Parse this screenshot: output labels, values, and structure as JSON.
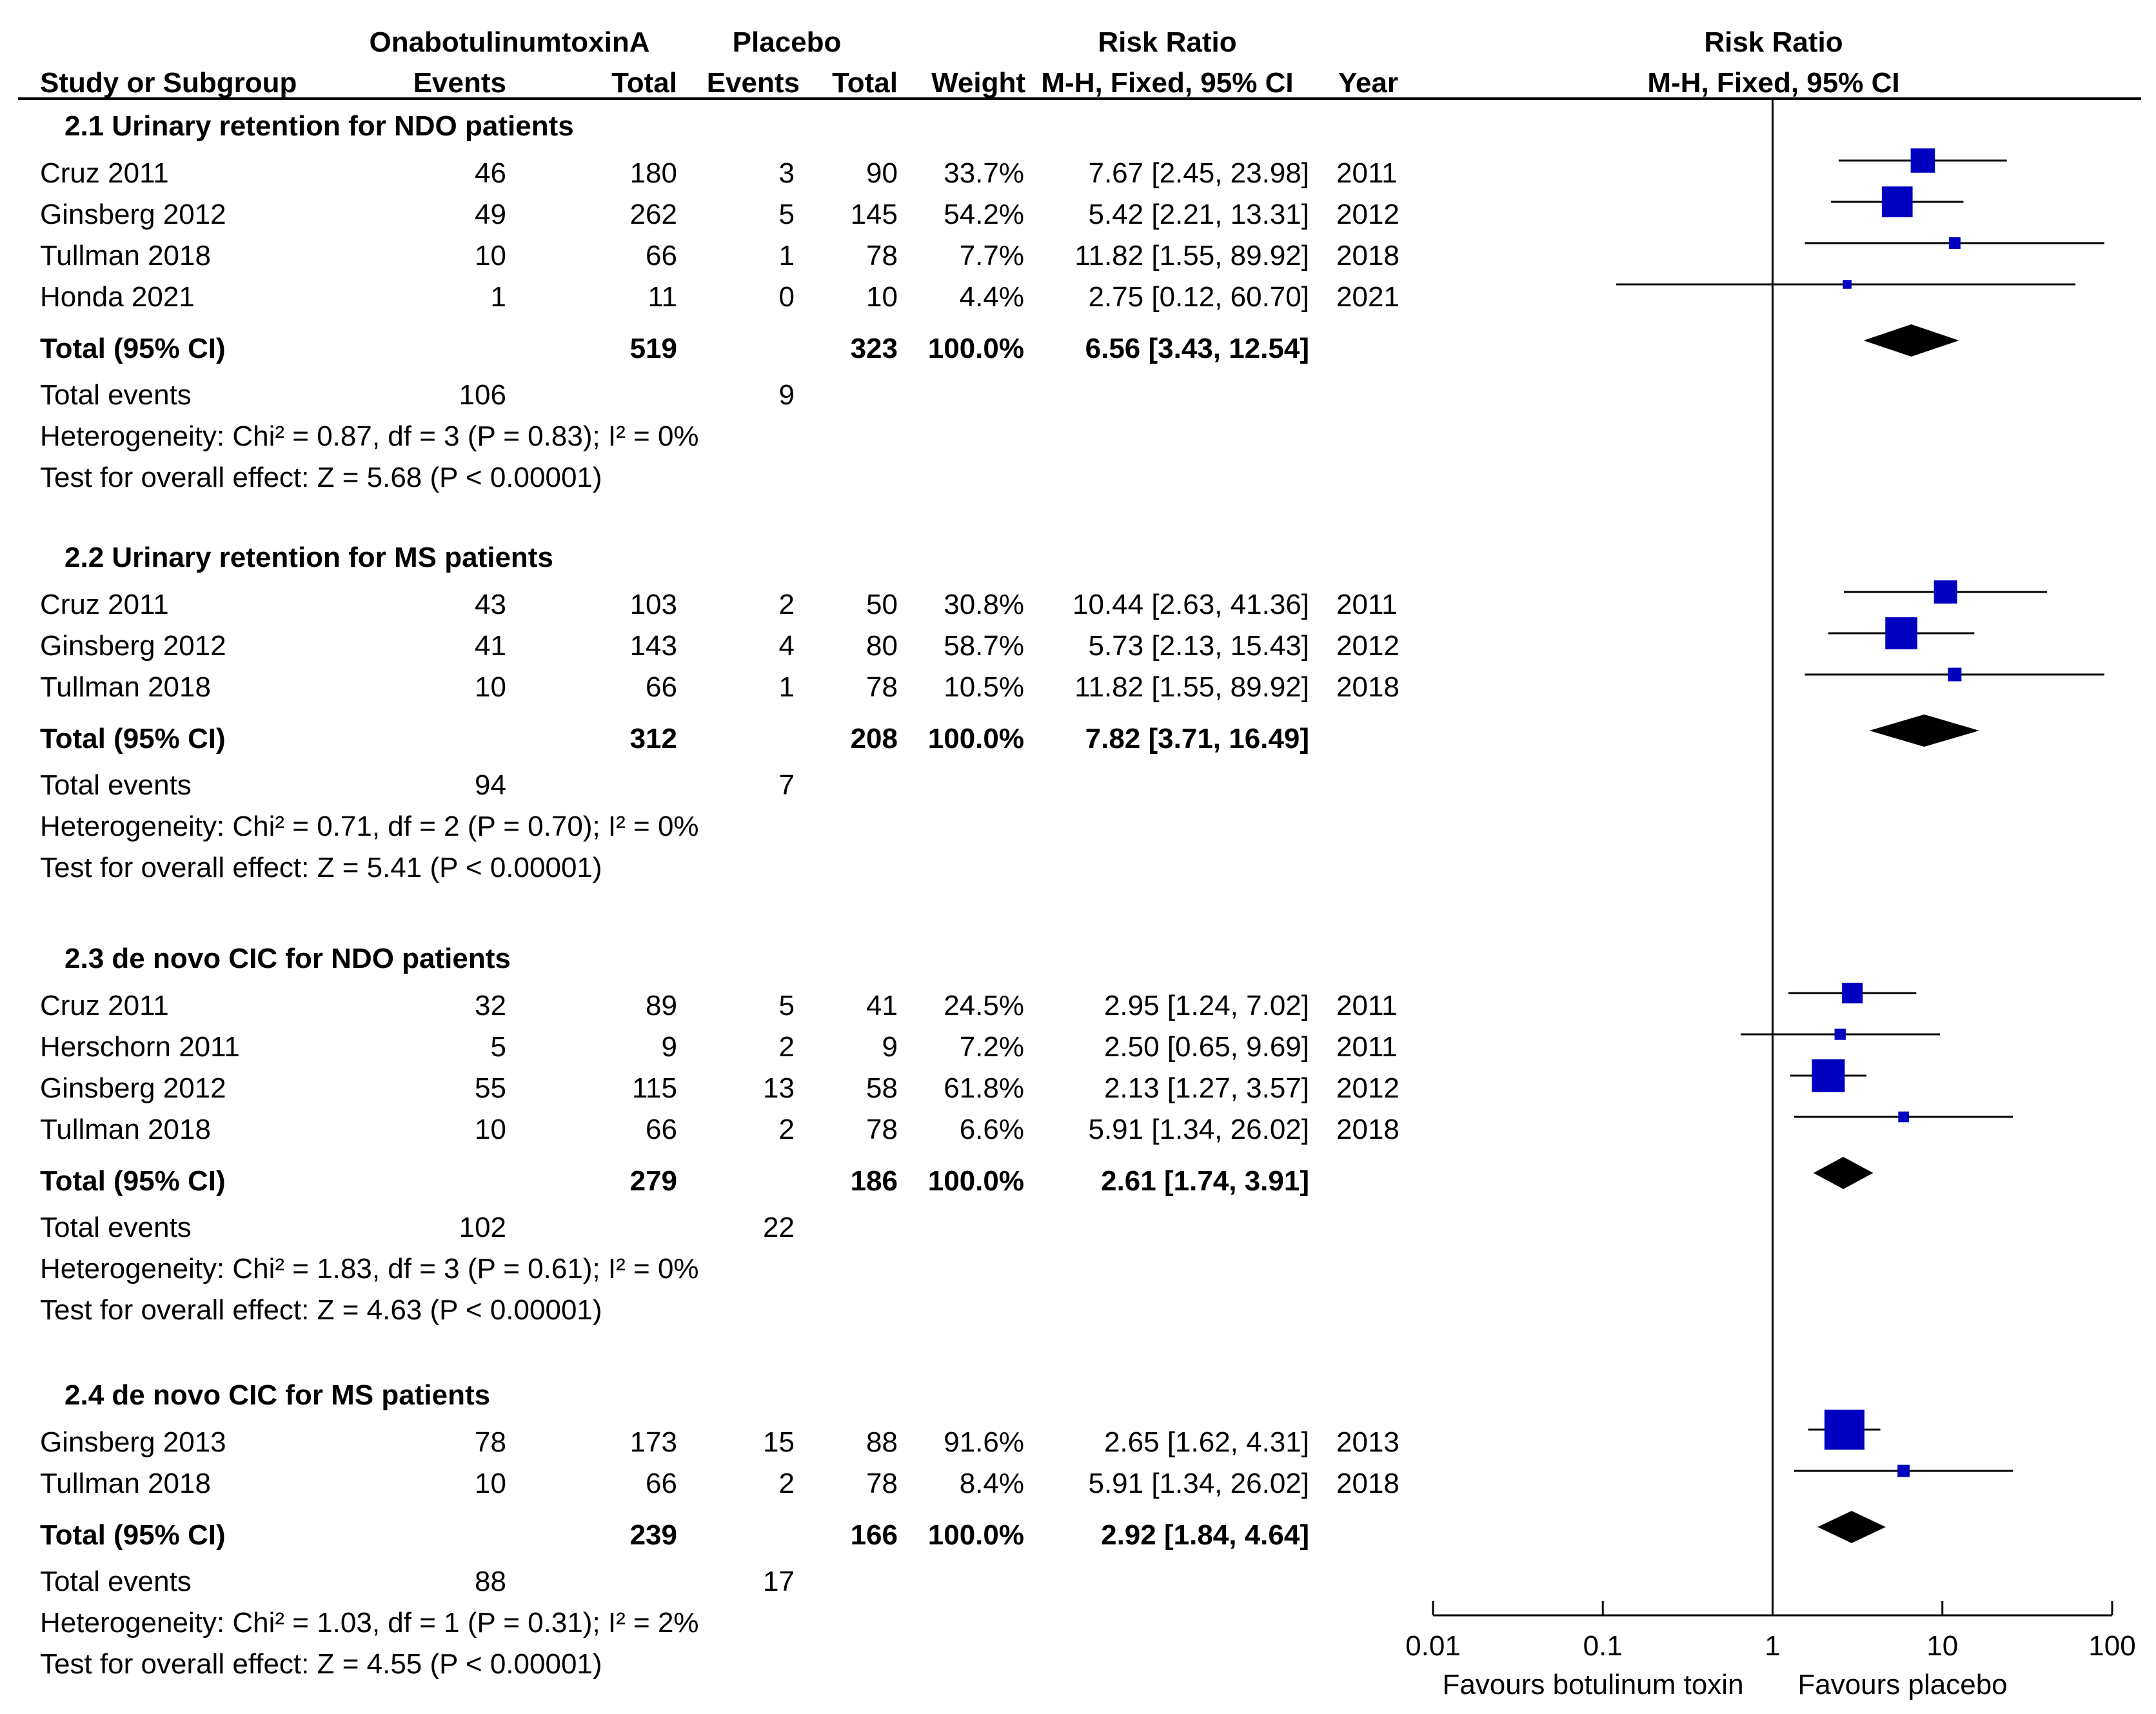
{
  "header": {
    "col_study": "Study or Subgroup",
    "group_treatment": "OnabotulinumtoxinA",
    "group_control": "Placebo",
    "col_events": "Events",
    "col_total": "Total",
    "col_weight": "Weight",
    "col_rr_title": "Risk Ratio",
    "col_rr_method": "M-H, Fixed, 95% CI",
    "col_year": "Year",
    "plot_title": "Risk Ratio",
    "plot_method": "M-H, Fixed, 95% CI"
  },
  "axis": {
    "tick_labels": [
      "0.01",
      "0.1",
      "1",
      "10",
      "100"
    ],
    "favours_left": "Favours botulinum toxin",
    "favours_right": "Favours placebo"
  },
  "colors": {
    "study_marker": "#0000c0",
    "diamond": "#000000",
    "line": "#000000"
  },
  "chart_data": {
    "type": "forest",
    "title": "Risk Ratio",
    "scale": "log",
    "xlim": [
      0.01,
      100
    ],
    "reference_line": 1,
    "subgroups": [
      {
        "title": "2.1 Urinary retention for NDO patients",
        "studies": [
          {
            "name": "Cruz 2011",
            "t_events": "46",
            "t_total": "180",
            "c_events": "3",
            "c_total": "90",
            "weight": "33.7%",
            "rr_text": "7.67 [2.45, 23.98]",
            "year": "2011",
            "rr": 7.67,
            "lo": 2.45,
            "hi": 23.98,
            "w": 33.7
          },
          {
            "name": "Ginsberg 2012",
            "t_events": "49",
            "t_total": "262",
            "c_events": "5",
            "c_total": "145",
            "weight": "54.2%",
            "rr_text": "5.42 [2.21, 13.31]",
            "year": "2012",
            "rr": 5.42,
            "lo": 2.21,
            "hi": 13.31,
            "w": 54.2
          },
          {
            "name": "Tullman 2018",
            "t_events": "10",
            "t_total": "66",
            "c_events": "1",
            "c_total": "78",
            "weight": "7.7%",
            "rr_text": "11.82 [1.55, 89.92]",
            "year": "2018",
            "rr": 11.82,
            "lo": 1.55,
            "hi": 89.92,
            "w": 7.7
          },
          {
            "name": "Honda 2021",
            "t_events": "1",
            "t_total": "11",
            "c_events": "0",
            "c_total": "10",
            "weight": "4.4%",
            "rr_text": "2.75 [0.12, 60.70]",
            "year": "2021",
            "rr": 2.75,
            "lo": 0.12,
            "hi": 60.7,
            "w": 4.4
          }
        ],
        "total": {
          "label": "Total (95% CI)",
          "t_total": "519",
          "c_total": "323",
          "weight": "100.0%",
          "rr_text": "6.56 [3.43, 12.54]",
          "rr": 6.56,
          "lo": 3.43,
          "hi": 12.54
        },
        "total_events": {
          "label": "Total events",
          "t": "106",
          "c": "9"
        },
        "heterogeneity": "Heterogeneity: Chi² = 0.87, df = 3 (P = 0.83); I² = 0%",
        "overall": "Test for overall effect: Z = 5.68 (P < 0.00001)"
      },
      {
        "title": "2.2 Urinary retention for MS patients",
        "studies": [
          {
            "name": "Cruz 2011",
            "t_events": "43",
            "t_total": "103",
            "c_events": "2",
            "c_total": "50",
            "weight": "30.8%",
            "rr_text": "10.44 [2.63, 41.36]",
            "year": "2011",
            "rr": 10.44,
            "lo": 2.63,
            "hi": 41.36,
            "w": 30.8
          },
          {
            "name": "Ginsberg 2012",
            "t_events": "41",
            "t_total": "143",
            "c_events": "4",
            "c_total": "80",
            "weight": "58.7%",
            "rr_text": "5.73 [2.13, 15.43]",
            "year": "2012",
            "rr": 5.73,
            "lo": 2.13,
            "hi": 15.43,
            "w": 58.7
          },
          {
            "name": "Tullman 2018",
            "t_events": "10",
            "t_total": "66",
            "c_events": "1",
            "c_total": "78",
            "weight": "10.5%",
            "rr_text": "11.82 [1.55, 89.92]",
            "year": "2018",
            "rr": 11.82,
            "lo": 1.55,
            "hi": 89.92,
            "w": 10.5
          }
        ],
        "total": {
          "label": "Total (95% CI)",
          "t_total": "312",
          "c_total": "208",
          "weight": "100.0%",
          "rr_text": "7.82 [3.71, 16.49]",
          "rr": 7.82,
          "lo": 3.71,
          "hi": 16.49
        },
        "total_events": {
          "label": "Total events",
          "t": "94",
          "c": "7"
        },
        "heterogeneity": "Heterogeneity: Chi² = 0.71, df = 2 (P = 0.70); I² = 0%",
        "overall": "Test for overall effect: Z = 5.41 (P < 0.00001)"
      },
      {
        "title": "2.3 de novo CIC for NDO patients",
        "studies": [
          {
            "name": "Cruz 2011",
            "t_events": "32",
            "t_total": "89",
            "c_events": "5",
            "c_total": "41",
            "weight": "24.5%",
            "rr_text": "2.95 [1.24, 7.02]",
            "year": "2011",
            "rr": 2.95,
            "lo": 1.24,
            "hi": 7.02,
            "w": 24.5
          },
          {
            "name": "Herschorn 2011",
            "t_events": "5",
            "t_total": "9",
            "c_events": "2",
            "c_total": "9",
            "weight": "7.2%",
            "rr_text": "2.50 [0.65, 9.69]",
            "year": "2011",
            "rr": 2.5,
            "lo": 0.65,
            "hi": 9.69,
            "w": 7.2
          },
          {
            "name": "Ginsberg 2012",
            "t_events": "55",
            "t_total": "115",
            "c_events": "13",
            "c_total": "58",
            "weight": "61.8%",
            "rr_text": "2.13 [1.27, 3.57]",
            "year": "2012",
            "rr": 2.13,
            "lo": 1.27,
            "hi": 3.57,
            "w": 61.8
          },
          {
            "name": "Tullman 2018",
            "t_events": "10",
            "t_total": "66",
            "c_events": "2",
            "c_total": "78",
            "weight": "6.6%",
            "rr_text": "5.91 [1.34, 26.02]",
            "year": "2018",
            "rr": 5.91,
            "lo": 1.34,
            "hi": 26.02,
            "w": 6.6
          }
        ],
        "total": {
          "label": "Total (95% CI)",
          "t_total": "279",
          "c_total": "186",
          "weight": "100.0%",
          "rr_text": "2.61 [1.74, 3.91]",
          "rr": 2.61,
          "lo": 1.74,
          "hi": 3.91
        },
        "total_events": {
          "label": "Total events",
          "t": "102",
          "c": "22"
        },
        "heterogeneity": "Heterogeneity: Chi² = 1.83, df = 3 (P = 0.61); I² = 0%",
        "overall": "Test for overall effect: Z = 4.63 (P < 0.00001)"
      },
      {
        "title": "2.4 de novo CIC for MS patients",
        "studies": [
          {
            "name": "Ginsberg 2013",
            "t_events": "78",
            "t_total": "173",
            "c_events": "15",
            "c_total": "88",
            "weight": "91.6%",
            "rr_text": "2.65 [1.62, 4.31]",
            "year": "2013",
            "rr": 2.65,
            "lo": 1.62,
            "hi": 4.31,
            "w": 91.6
          },
          {
            "name": "Tullman 2018",
            "t_events": "10",
            "t_total": "66",
            "c_events": "2",
            "c_total": "78",
            "weight": "8.4%",
            "rr_text": "5.91 [1.34, 26.02]",
            "year": "2018",
            "rr": 5.91,
            "lo": 1.34,
            "hi": 26.02,
            "w": 8.4
          }
        ],
        "total": {
          "label": "Total (95% CI)",
          "t_total": "239",
          "c_total": "166",
          "weight": "100.0%",
          "rr_text": "2.92 [1.84, 4.64]",
          "rr": 2.92,
          "lo": 1.84,
          "hi": 4.64
        },
        "total_events": {
          "label": "Total events",
          "t": "88",
          "c": "17"
        },
        "heterogeneity": "Heterogeneity: Chi² = 1.03, df = 1 (P = 0.31); I² = 2%",
        "overall": "Test for overall effect: Z = 4.55 (P < 0.00001)"
      }
    ]
  }
}
